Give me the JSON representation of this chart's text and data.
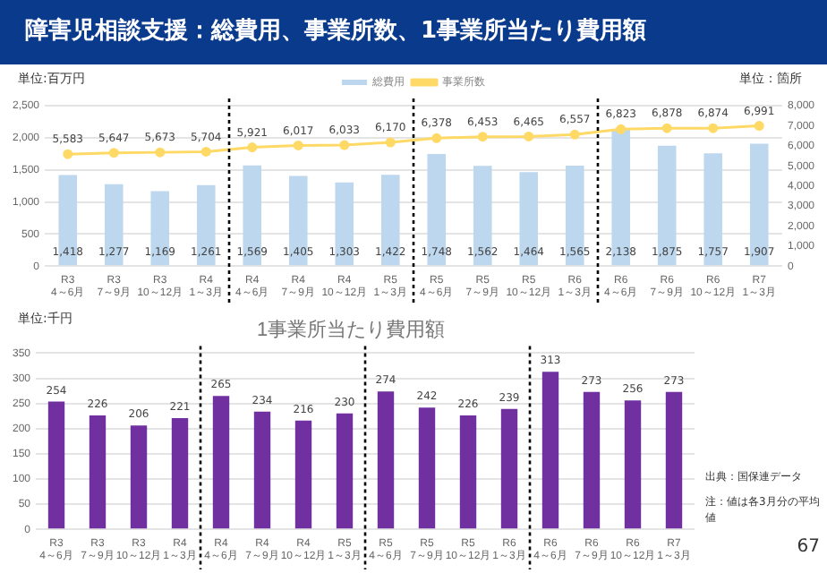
{
  "chart_data": [
    {
      "type": "bar",
      "title": "障害児相談支援：総費用、事業所数、1事業所当たり費用額",
      "ylabel": "単位:百万円",
      "y2label": "単位：箇所",
      "categories": [
        "R3\n4～6月",
        "R3\n7～9月",
        "R3\n10～12月",
        "R4\n1～3月",
        "R4\n4～6月",
        "R4\n7～9月",
        "R4\n10～12月",
        "R5\n1～3月",
        "R5\n4～6月",
        "R5\n7～9月",
        "R5\n10～12月",
        "R6\n1～3月",
        "R6\n4～6月",
        "R6\n7～9月",
        "R6\n10～12月",
        "R7\n1～3月"
      ],
      "series": [
        {
          "name": "総費用",
          "type": "bar",
          "color": "#bdd7ee",
          "values": [
            1418,
            1277,
            1169,
            1261,
            1569,
            1405,
            1303,
            1422,
            1748,
            1562,
            1464,
            1565,
            2138,
            1875,
            1757,
            1907
          ],
          "value_labels": [
            "1,418",
            "1,277",
            "1,169",
            "1,261",
            "1,569",
            "1,405",
            "1,303",
            "1,422",
            "1,748",
            "1,562",
            "1,464",
            "1,565",
            "2,138",
            "1,875",
            "1,757",
            "1,907"
          ]
        },
        {
          "name": "事業所数",
          "type": "line",
          "axis": "y2",
          "color": "#ffd966",
          "values": [
            5583,
            5647,
            5673,
            5704,
            5921,
            6017,
            6033,
            6170,
            6378,
            6453,
            6465,
            6557,
            6823,
            6878,
            6874,
            6991
          ],
          "value_labels": [
            "5,583",
            "5,647",
            "5,673",
            "5,704",
            "5,921",
            "6,017",
            "6,033",
            "6,170",
            "6,378",
            "6,453",
            "6,465",
            "6,557",
            "6,823",
            "6,878",
            "6,874",
            "6,991"
          ]
        }
      ],
      "ylim": [
        0,
        2500
      ],
      "yticks": [
        0,
        500,
        {
          "value": 1000,
          "label": "1,000"
        },
        {
          "value": 1500,
          "label": "1,500"
        },
        {
          "value": 2000,
          "label": "2,000"
        },
        {
          "value": 2500,
          "label": "2,500"
        }
      ],
      "y2lim": [
        0,
        8000
      ],
      "y2ticks": [
        0,
        {
          "value": 1000,
          "label": "1,000"
        },
        {
          "value": 2000,
          "label": "2,000"
        },
        {
          "value": 3000,
          "label": "3,000"
        },
        {
          "value": 4000,
          "label": "4,000"
        },
        {
          "value": 5000,
          "label": "5,000"
        },
        {
          "value": 6000,
          "label": "6,000"
        },
        {
          "value": 7000,
          "label": "7,000"
        },
        {
          "value": 8000,
          "label": "8,000"
        }
      ],
      "grid": "y",
      "legend": "top",
      "marker": "circle"
    },
    {
      "type": "bar",
      "title": "1事業所当たり費用額",
      "ylabel": "単位:千円",
      "categories": [
        "R3\n4～6月",
        "R3\n7～9月",
        "R3\n10～12月",
        "R4\n1～3月",
        "R4\n4～6月",
        "R4\n7～9月",
        "R4\n10～12月",
        "R5\n1～3月",
        "R5\n4～6月",
        "R5\n7～9月",
        "R5\n10～12月",
        "R6\n1～3月",
        "R6\n4～6月",
        "R6\n7～9月",
        "R6\n10～12月",
        "R7\n1～3月"
      ],
      "series": [
        {
          "color": "#7030a0",
          "values": [
            254,
            226,
            206,
            221,
            265,
            234,
            216,
            230,
            274,
            242,
            226,
            239,
            313,
            273,
            256,
            273
          ]
        }
      ],
      "ylim": [
        0,
        350
      ],
      "yticks": [
        0,
        50,
        100,
        150,
        200,
        250,
        300,
        350
      ],
      "grid": "y",
      "data_labels": true,
      "annotations": [
        "出典：国保連データ",
        "注：値は各3月分の平均値",
        "67"
      ]
    }
  ]
}
